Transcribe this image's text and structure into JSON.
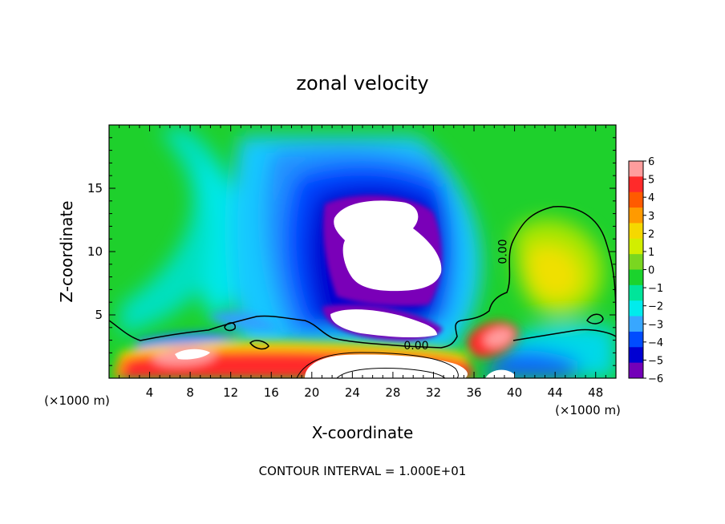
{
  "chart_data": {
    "type": "heatmap",
    "title": "zonal velocity",
    "xlabel": "X-coordinate",
    "ylabel": "Z-coordinate",
    "x_unit": "(×1000 m)",
    "z_unit": "(×1000 m)",
    "xlim": [
      0,
      50
    ],
    "ylim": [
      0,
      20
    ],
    "x_ticks": [
      4,
      8,
      12,
      16,
      20,
      24,
      28,
      32,
      36,
      40,
      44,
      48
    ],
    "y_ticks": [
      5,
      10,
      15
    ],
    "x_tick_labels": [
      "4",
      "8",
      "12",
      "16",
      "20",
      "24",
      "28",
      "32",
      "36",
      "40",
      "44",
      "48"
    ],
    "y_tick_labels": [
      "5",
      "10",
      "15"
    ],
    "colorbar": {
      "labels": [
        "6",
        "5",
        "4",
        "3",
        "2",
        "1",
        "0",
        "−1",
        "−2",
        "−3",
        "−4",
        "−5",
        "−6"
      ],
      "range": [
        -6,
        6
      ],
      "colors": [
        "#ff9d9d",
        "#ff2a2a",
        "#ff5a00",
        "#ff9a00",
        "#f5d800",
        "#d2ee00",
        "#7ad620",
        "#1bd32d",
        "#00e59a",
        "#00ecec",
        "#38a7ff",
        "#004cff",
        "#0000d2",
        "#7300b8"
      ]
    },
    "contour_labels": [
      {
        "text": "0.00",
        "x": 30.3,
        "z": 2.6
      },
      {
        "text": "0.00",
        "x": 38.8,
        "z": 10.0
      }
    ],
    "footnote": "CONTOUR INTERVAL = 1.000E+01"
  }
}
